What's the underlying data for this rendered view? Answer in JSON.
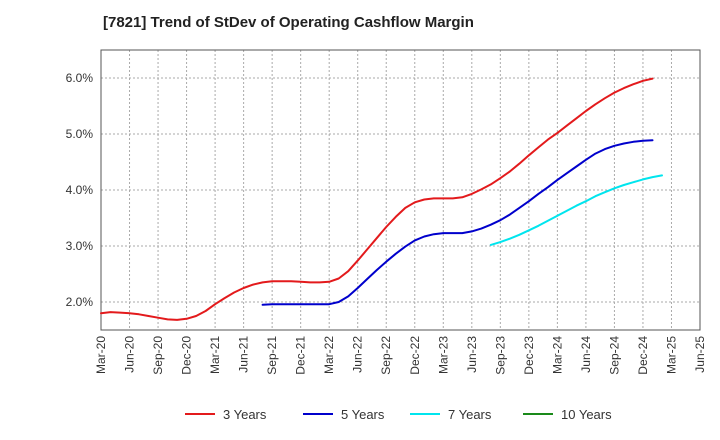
{
  "chart_data": {
    "type": "line",
    "title": "[7821]  Trend of StDev of Operating Cashflow Margin",
    "xlabel": "",
    "ylabel": "",
    "x_ticks": [
      "Mar-20",
      "Jun-20",
      "Sep-20",
      "Dec-20",
      "Mar-21",
      "Jun-21",
      "Sep-21",
      "Dec-21",
      "Mar-22",
      "Jun-22",
      "Sep-22",
      "Dec-22",
      "Mar-23",
      "Jun-23",
      "Sep-23",
      "Dec-23",
      "Mar-24",
      "Jun-24",
      "Sep-24",
      "Dec-24",
      "Mar-25",
      "Jun-25"
    ],
    "y_ticks": [
      "2.0%",
      "3.0%",
      "4.0%",
      "5.0%",
      "6.0%"
    ],
    "ylim": [
      1.5,
      6.5
    ],
    "grid": true,
    "legend_position": "bottom",
    "series": [
      {
        "name": "3 Years",
        "color": "#e31a1c",
        "points": [
          [
            "Mar-20",
            1.8
          ],
          [
            "Apr-20",
            1.82
          ],
          [
            "May-20",
            1.81
          ],
          [
            "Jun-20",
            1.8
          ],
          [
            "Jul-20",
            1.78
          ],
          [
            "Aug-20",
            1.75
          ],
          [
            "Sep-20",
            1.72
          ],
          [
            "Oct-20",
            1.69
          ],
          [
            "Nov-20",
            1.68
          ],
          [
            "Dec-20",
            1.7
          ],
          [
            "Jan-21",
            1.75
          ],
          [
            "Feb-21",
            1.84
          ],
          [
            "Mar-21",
            1.96
          ],
          [
            "Apr-21",
            2.07
          ],
          [
            "May-21",
            2.17
          ],
          [
            "Jun-21",
            2.25
          ],
          [
            "Jul-21",
            2.31
          ],
          [
            "Aug-21",
            2.35
          ],
          [
            "Sep-21",
            2.37
          ],
          [
            "Oct-21",
            2.37
          ],
          [
            "Nov-21",
            2.37
          ],
          [
            "Dec-21",
            2.36
          ],
          [
            "Jan-22",
            2.35
          ],
          [
            "Feb-22",
            2.35
          ],
          [
            "Mar-22",
            2.36
          ],
          [
            "Apr-22",
            2.42
          ],
          [
            "May-22",
            2.55
          ],
          [
            "Jun-22",
            2.74
          ],
          [
            "Jul-22",
            2.94
          ],
          [
            "Aug-22",
            3.14
          ],
          [
            "Sep-22",
            3.34
          ],
          [
            "Oct-22",
            3.52
          ],
          [
            "Nov-22",
            3.68
          ],
          [
            "Dec-22",
            3.78
          ],
          [
            "Jan-23",
            3.83
          ],
          [
            "Feb-23",
            3.85
          ],
          [
            "Mar-23",
            3.85
          ],
          [
            "Apr-23",
            3.85
          ],
          [
            "May-23",
            3.87
          ],
          [
            "Jun-23",
            3.93
          ],
          [
            "Jul-23",
            4.01
          ],
          [
            "Aug-23",
            4.1
          ],
          [
            "Sep-23",
            4.21
          ],
          [
            "Oct-23",
            4.33
          ],
          [
            "Nov-23",
            4.47
          ],
          [
            "Dec-23",
            4.62
          ],
          [
            "Jan-24",
            4.76
          ],
          [
            "Feb-24",
            4.9
          ],
          [
            "Mar-24",
            5.02
          ],
          [
            "Apr-24",
            5.15
          ],
          [
            "May-24",
            5.28
          ],
          [
            "Jun-24",
            5.41
          ],
          [
            "Jul-24",
            5.53
          ],
          [
            "Aug-24",
            5.64
          ],
          [
            "Sep-24",
            5.74
          ],
          [
            "Oct-24",
            5.82
          ],
          [
            "Nov-24",
            5.89
          ],
          [
            "Dec-24",
            5.95
          ],
          [
            "Jan-25",
            5.99
          ]
        ]
      },
      {
        "name": "5 Years",
        "color": "#0000cc",
        "points": [
          [
            "Aug-21",
            1.95
          ],
          [
            "Sep-21",
            1.96
          ],
          [
            "Oct-21",
            1.96
          ],
          [
            "Nov-21",
            1.96
          ],
          [
            "Dec-21",
            1.96
          ],
          [
            "Jan-22",
            1.96
          ],
          [
            "Feb-22",
            1.96
          ],
          [
            "Mar-22",
            1.96
          ],
          [
            "Apr-22",
            2.0
          ],
          [
            "May-22",
            2.1
          ],
          [
            "Jun-22",
            2.25
          ],
          [
            "Jul-22",
            2.41
          ],
          [
            "Aug-22",
            2.57
          ],
          [
            "Sep-22",
            2.72
          ],
          [
            "Oct-22",
            2.86
          ],
          [
            "Nov-22",
            2.99
          ],
          [
            "Dec-22",
            3.1
          ],
          [
            "Jan-23",
            3.17
          ],
          [
            "Feb-23",
            3.21
          ],
          [
            "Mar-23",
            3.23
          ],
          [
            "Apr-23",
            3.23
          ],
          [
            "May-23",
            3.23
          ],
          [
            "Jun-23",
            3.26
          ],
          [
            "Jul-23",
            3.31
          ],
          [
            "Aug-23",
            3.38
          ],
          [
            "Sep-23",
            3.46
          ],
          [
            "Oct-23",
            3.56
          ],
          [
            "Nov-23",
            3.68
          ],
          [
            "Dec-23",
            3.8
          ],
          [
            "Jan-24",
            3.93
          ],
          [
            "Feb-24",
            4.05
          ],
          [
            "Mar-24",
            4.18
          ],
          [
            "Apr-24",
            4.3
          ],
          [
            "May-24",
            4.42
          ],
          [
            "Jun-24",
            4.54
          ],
          [
            "Jul-24",
            4.65
          ],
          [
            "Aug-24",
            4.73
          ],
          [
            "Sep-24",
            4.79
          ],
          [
            "Oct-24",
            4.83
          ],
          [
            "Nov-24",
            4.86
          ],
          [
            "Dec-24",
            4.88
          ],
          [
            "Jan-25",
            4.89
          ]
        ]
      },
      {
        "name": "7 Years",
        "color": "#00e5ee",
        "points": [
          [
            "Aug-23",
            3.02
          ],
          [
            "Sep-23",
            3.07
          ],
          [
            "Oct-23",
            3.13
          ],
          [
            "Nov-23",
            3.2
          ],
          [
            "Dec-23",
            3.28
          ],
          [
            "Jan-24",
            3.36
          ],
          [
            "Feb-24",
            3.45
          ],
          [
            "Mar-24",
            3.54
          ],
          [
            "Apr-24",
            3.63
          ],
          [
            "May-24",
            3.72
          ],
          [
            "Jun-24",
            3.8
          ],
          [
            "Jul-24",
            3.89
          ],
          [
            "Aug-24",
            3.96
          ],
          [
            "Sep-24",
            4.03
          ],
          [
            "Oct-24",
            4.09
          ],
          [
            "Nov-24",
            4.14
          ],
          [
            "Dec-24",
            4.19
          ],
          [
            "Jan-25",
            4.23
          ],
          [
            "Feb-25",
            4.26
          ]
        ]
      },
      {
        "name": "10 Years",
        "color": "#1a8a1a",
        "points": []
      }
    ]
  }
}
